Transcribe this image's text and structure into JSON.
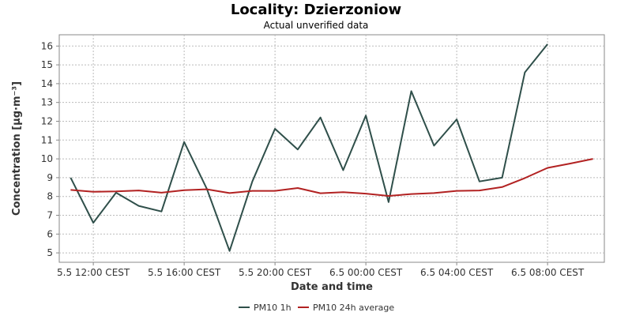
{
  "chart_data": {
    "type": "line",
    "title": "Locality: Dzierzoniow",
    "subtitle": "Actual unverified data",
    "xlabel": "Date and time",
    "ylabel": "Concentration [µg·m⁻³]",
    "xlim": [
      "2023-05-05T10:30",
      "2023-05-06T10:30"
    ],
    "ylim": [
      4.5,
      16.6
    ],
    "y_ticks": [
      5,
      6,
      7,
      8,
      9,
      10,
      11,
      12,
      13,
      14,
      15,
      16
    ],
    "x_ticks": [
      {
        "t": "2023-05-05T12:00",
        "label": "5.5 12:00 CEST"
      },
      {
        "t": "2023-05-05T16:00",
        "label": "5.5 16:00 CEST"
      },
      {
        "t": "2023-05-05T20:00",
        "label": "5.5 20:00 CEST"
      },
      {
        "t": "2023-05-06T00:00",
        "label": "6.5 00:00 CEST"
      },
      {
        "t": "2023-05-06T04:00",
        "label": "6.5 04:00 CEST"
      },
      {
        "t": "2023-05-06T08:00",
        "label": "6.5 08:00 CEST"
      }
    ],
    "x": [
      "2023-05-05T11:00",
      "2023-05-05T12:00",
      "2023-05-05T13:00",
      "2023-05-05T14:00",
      "2023-05-05T15:00",
      "2023-05-05T16:00",
      "2023-05-05T17:00",
      "2023-05-05T18:00",
      "2023-05-05T19:00",
      "2023-05-05T20:00",
      "2023-05-05T21:00",
      "2023-05-05T22:00",
      "2023-05-05T23:00",
      "2023-05-06T00:00",
      "2023-05-06T01:00",
      "2023-05-06T02:00",
      "2023-05-06T03:00",
      "2023-05-06T04:00",
      "2023-05-06T05:00",
      "2023-05-06T06:00",
      "2023-05-06T07:00",
      "2023-05-06T08:00",
      "2023-05-06T09:00",
      "2023-05-06T10:00"
    ],
    "series": [
      {
        "name": "PM10 1h",
        "color": "#2f4f4a",
        "values": [
          9.0,
          6.6,
          8.2,
          7.5,
          7.2,
          10.9,
          8.4,
          5.1,
          8.8,
          11.6,
          10.5,
          12.2,
          9.4,
          12.3,
          7.7,
          13.6,
          10.7,
          12.1,
          8.8,
          9.0,
          14.6,
          16.1,
          null,
          null
        ]
      },
      {
        "name": "PM10 24h average",
        "color": "#b22222",
        "values": [
          8.35,
          8.25,
          8.27,
          8.32,
          8.2,
          8.33,
          8.38,
          8.18,
          8.3,
          8.3,
          8.45,
          8.17,
          8.23,
          8.15,
          8.03,
          8.13,
          8.18,
          8.3,
          8.32,
          8.5,
          8.98,
          9.52,
          9.75,
          10.0
        ]
      }
    ],
    "grid": true,
    "legend": "bottom-center"
  }
}
